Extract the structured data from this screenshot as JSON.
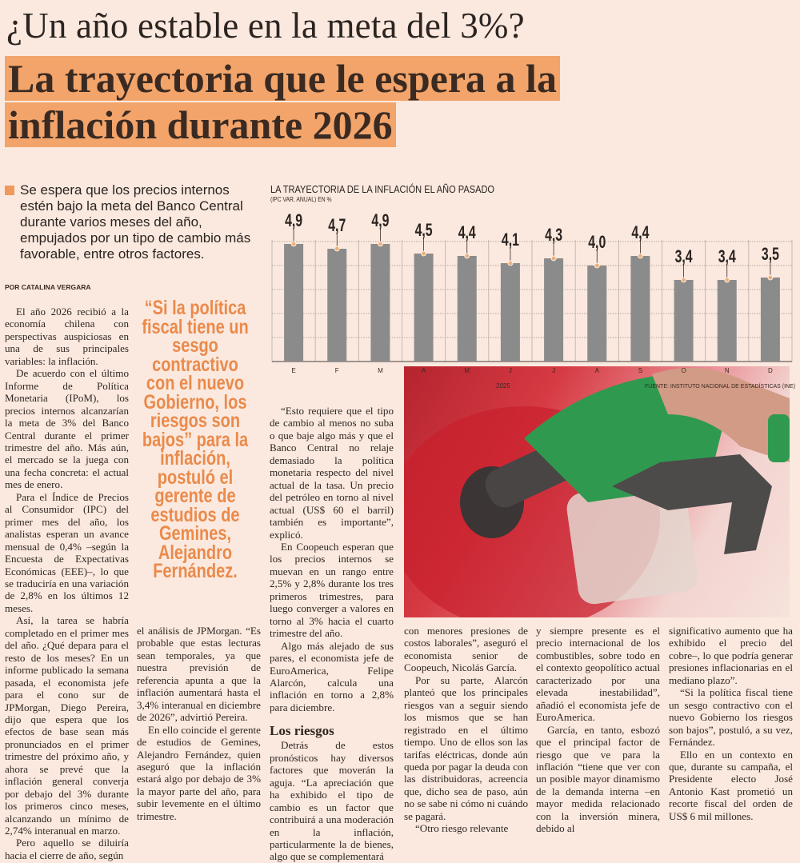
{
  "header": {
    "kicker": "¿Un año estable en la meta del 3%?",
    "headline_line1": "La trayectoria que le espera a la",
    "headline_line2": "inflación durante 2026"
  },
  "lead": "Se espera que los precios internos estén bajo la meta del Banco Central durante varios meses del año, empujados por un tipo de cambio más favorable, entre otros factores.",
  "byline": "POR CATALINA VERGARA",
  "pull_quote": "“Si la política fiscal tiene un sesgo contractivo con el nuevo Gobierno, los riesgos son bajos” para la inflación, postuló el gerente de estudios de Gemines, Alejandro Fernández.",
  "columns": {
    "c1": [
      "El año 2026 recibió a la economía chilena con perspectivas auspiciosas en una de sus principales variables: la inflación.",
      "De acuerdo con el último Informe de Política Monetaria (IPoM), los precios internos alcanzarían la meta de 3% del Banco Central durante el primer trimestre del año. Más aún, el mercado se la juega con una fecha concreta: el actual mes de enero.",
      "Para el Índice de Precios al Consumidor (IPC) del primer mes del año, los analistas esperan un avance mensual de 0,4% –según la Encuesta de Expectativas Económicas (EEE)–, lo que se traduciría en una variación de 2,8% en los últimos 12 meses.",
      "Así, la tarea se habría completado en el primer mes del año. ¿Qué depara para el resto de los meses? En un informe publicado la semana pasada, el economista jefe para el cono sur de JPMorgan, Diego Pereira, dijo que espera que los efectos de base sean más pronunciados en el primer trimestre del próximo año, y ahora se prevé que la inflación general converja por debajo del 3% durante los primeros cinco meses, alcanzando un mínimo de 2,74% interanual en marzo.",
      "Pero aquello se diluiría hacia el cierre de año, según"
    ],
    "c2": [
      "el análisis de JPMorgan. “Es probable que estas lecturas sean temporales, ya que nuestra previsión de referencia apunta a que la inflación aumentará hasta el 3,4% interanual en diciembre de 2026”, advirtió Pereira.",
      "En ello coincide el gerente de estudios de Gemines, Alejandro Fernández, quien aseguró que la inflación estará algo por debajo de 3% la mayor parte del año, para subir levemente en el último trimestre."
    ],
    "c3": [
      "“Esto requiere que el tipo de cambio al menos no suba o que baje algo más y que el Banco Central no relaje demasiado la política monetaria respecto del nivel actual de la tasa. Un precio del petróleo en torno al nivel actual (US$ 60 el barril) también es importante”, explicó.",
      "En Coopeuch esperan que los precios internos se muevan en un rango entre 2,5% y 2,8% durante los tres primeros trimestres, para luego converger a valores en torno al 3% hacia el cuarto trimestre del año.",
      "Algo más alejado de sus pares, el economista jefe de EuroAmerica, Felipe Alarcón, calcula una inflación en torno a 2,8% para diciembre."
    ],
    "subhead": "Los riesgos",
    "c3b": [
      "Detrás de estos pronósticos hay diversos factores que moverán la aguja. “La apreciación que ha exhibido el tipo de cambio es un factor que contribuirá a una moderación en la inflación, particularmente la de bienes, algo que se complementará"
    ],
    "c4": [
      "con menores presiones de costos laborales”, aseguró el economista senior de Coopeuch, Nicolás García.",
      "Por su parte, Alarcón planteó que los principales riesgos van a seguir siendo los mismos que se han registrado en el último tiempo. Uno de ellos son las tarifas eléctricas, donde aún queda por pagar la deuda con las distribuidoras, acreencia que, dicho sea de paso, aún no se sabe ni cómo ni cuándo se pagará.",
      "“Otro riesgo relevante"
    ],
    "c5": [
      "y siempre presente es el precio internacional de los combustibles, sobre todo en el contexto geopolítico actual caracterizado por una elevada inestabilidad”, añadió el economista jefe de EuroAmerica.",
      "García, en tanto, esbozó que el principal factor de riesgo que ve para la inflación “tiene que ver con un posible mayor dinamismo de la demanda interna –en mayor medida relacionado con la inversión minera, debido al"
    ],
    "c6": [
      "significativo aumento que ha exhibido el precio del cobre–, lo que podría generar presiones inflacionarias en el mediano plazo”.",
      "“Si la política fiscal tiene un sesgo contractivo con el nuevo Gobierno los riesgos son bajos”, postuló, a su vez, Fernández.",
      "Ello en un contexto en que, durante su campaña, el Presidente electo José Antonio Kast prometió un recorte fiscal del orden de US$ 6 mil millones."
    ]
  },
  "chart_data": {
    "type": "bar",
    "title": "LA TRAYECTORIA DE LA INFLACIÓN EL AÑO PASADO",
    "subtitle": "(IPC VAR. ANUAL) EN %",
    "categories": [
      "E",
      "F",
      "M",
      "A",
      "M",
      "J",
      "J",
      "A",
      "S",
      "O",
      "N",
      "D"
    ],
    "values": [
      4.9,
      4.7,
      4.9,
      4.5,
      4.4,
      4.1,
      4.3,
      4.0,
      4.4,
      3.4,
      3.4,
      3.5
    ],
    "value_labels": [
      "4,9",
      "4,7",
      "4,9",
      "4,5",
      "4,4",
      "4,1",
      "4,3",
      "4,0",
      "4,4",
      "3,4",
      "3,4",
      "3,5"
    ],
    "xlabel": "2025",
    "ylabel": "",
    "ylim": [
      0,
      5
    ],
    "grid": true,
    "source": "FUENTE: INSTITUTO NACIONAL DE ESTADÍSTICAS (INE)",
    "colors": {
      "bar": "#8c8b8b",
      "marker": "#f0b27a",
      "label": "#2a2320"
    }
  },
  "colors": {
    "accent": "#f2a46a",
    "pull_quote": "#ea8a4b",
    "background": "#fbe9df"
  },
  "photo": {
    "icon": "fuel-nozzle-photo"
  }
}
